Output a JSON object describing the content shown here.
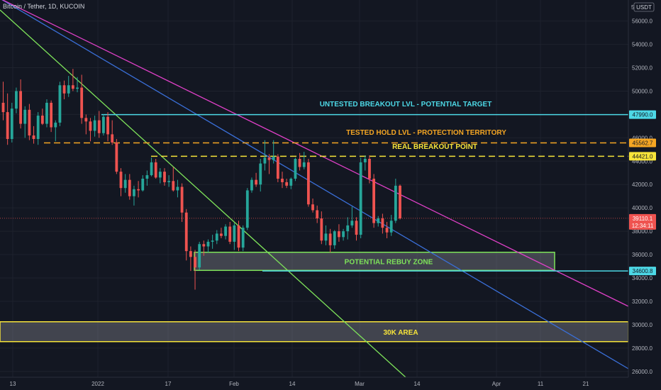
{
  "header": {
    "symbol_line": "Bitcoin / Tether, 1D, KUCOIN"
  },
  "chart_data": {
    "type": "candlestick",
    "title": "Bitcoin / Tether, 1D, KUCOIN",
    "quote_currency": "USDT",
    "scale_badge": "5",
    "ylim": [
      25500,
      57800
    ],
    "y_ticks": [
      26000,
      28000,
      30000,
      32000,
      34000,
      36000,
      38000,
      40000,
      42000,
      44000,
      46000,
      48000,
      50000,
      52000,
      54000,
      56000
    ],
    "x_ticks": [
      "13",
      "2022",
      "17",
      "Feb",
      "14",
      "Mar",
      "14",
      "Apr",
      "11",
      "21"
    ],
    "grid": true,
    "candles_ohlc": [
      [
        49000,
        50800,
        47500,
        48200
      ],
      [
        48200,
        49800,
        45400,
        45900
      ],
      [
        45900,
        49000,
        45600,
        48500
      ],
      [
        48500,
        50300,
        48100,
        50000
      ],
      [
        50000,
        51000,
        46800,
        47200
      ],
      [
        47200,
        48700,
        46000,
        48400
      ],
      [
        48400,
        48900,
        45800,
        46200
      ],
      [
        46200,
        47000,
        45500,
        45900
      ],
      [
        45900,
        48200,
        45400,
        47900
      ],
      [
        47900,
        48500,
        47100,
        47200
      ],
      [
        47200,
        49300,
        46900,
        49000
      ],
      [
        49000,
        49200,
        46500,
        46900
      ],
      [
        46900,
        47500,
        45700,
        47300
      ],
      [
        47300,
        50800,
        47000,
        50500
      ],
      [
        50500,
        50900,
        49300,
        49800
      ],
      [
        49800,
        51300,
        49500,
        50500
      ],
      [
        50500,
        51900,
        50000,
        50200
      ],
      [
        50200,
        51200,
        49900,
        50300
      ],
      [
        50300,
        51400,
        47200,
        47700
      ],
      [
        47700,
        48000,
        46300,
        47400
      ],
      [
        47400,
        47700,
        45700,
        46600
      ],
      [
        46600,
        47900,
        46100,
        47500
      ],
      [
        47500,
        48300,
        46000,
        46400
      ],
      [
        46400,
        48000,
        46200,
        47800
      ],
      [
        47800,
        48200,
        45700,
        46300
      ],
      [
        46300,
        47500,
        45400,
        45600
      ],
      [
        45600,
        45900,
        42900,
        43100
      ],
      [
        43100,
        43400,
        41000,
        41700
      ],
      [
        41700,
        42900,
        41300,
        42400
      ],
      [
        42400,
        42900,
        40700,
        41000
      ],
      [
        41000,
        41900,
        40200,
        41600
      ],
      [
        41600,
        42300,
        40900,
        41500
      ],
      [
        41500,
        42800,
        41400,
        42500
      ],
      [
        42500,
        43200,
        41900,
        42800
      ],
      [
        42800,
        44300,
        42700,
        43900
      ],
      [
        43900,
        44200,
        42500,
        42600
      ],
      [
        42600,
        43400,
        42100,
        43100
      ],
      [
        43100,
        43400,
        41900,
        42200
      ],
      [
        42200,
        42800,
        41800,
        42300
      ],
      [
        42300,
        43500,
        41400,
        41500
      ],
      [
        41500,
        42400,
        40900,
        41800
      ],
      [
        41800,
        42100,
        38800,
        39600
      ],
      [
        39600,
        39900,
        35500,
        36300
      ],
      [
        36300,
        36700,
        34600,
        35800
      ],
      [
        35800,
        36400,
        33000,
        34900
      ],
      [
        34900,
        37100,
        34700,
        36900
      ],
      [
        36900,
        37200,
        35900,
        36700
      ],
      [
        36700,
        37300,
        36200,
        37100
      ],
      [
        37100,
        37700,
        36500,
        37200
      ],
      [
        37200,
        38100,
        36900,
        37800
      ],
      [
        37800,
        38300,
        37400,
        37600
      ],
      [
        37600,
        38600,
        37300,
        38400
      ],
      [
        38400,
        38800,
        36900,
        37100
      ],
      [
        37100,
        38700,
        36400,
        38500
      ],
      [
        38500,
        38900,
        36300,
        36600
      ],
      [
        36600,
        38500,
        36300,
        38300
      ],
      [
        38300,
        41700,
        38100,
        41500
      ],
      [
        41500,
        42600,
        41300,
        42400
      ],
      [
        42400,
        43000,
        41800,
        42000
      ],
      [
        42000,
        44200,
        41400,
        43800
      ],
      [
        43800,
        45800,
        43200,
        44300
      ],
      [
        44300,
        44600,
        42900,
        44100
      ],
      [
        44100,
        45800,
        43800,
        44400
      ],
      [
        44400,
        44600,
        42200,
        42500
      ],
      [
        42500,
        43100,
        41700,
        42200
      ],
      [
        42200,
        42500,
        41700,
        41900
      ],
      [
        41900,
        42600,
        41600,
        42500
      ],
      [
        42500,
        44300,
        42300,
        44200
      ],
      [
        44200,
        44700,
        43200,
        43500
      ],
      [
        43500,
        44800,
        43300,
        43900
      ],
      [
        43900,
        44200,
        40100,
        40300
      ],
      [
        40300,
        40800,
        39600,
        39800
      ],
      [
        39800,
        40200,
        38700,
        39100
      ],
      [
        39100,
        39700,
        36900,
        37200
      ],
      [
        37200,
        38500,
        36800,
        37800
      ],
      [
        37800,
        38200,
        36200,
        36800
      ],
      [
        36800,
        38100,
        36500,
        38000
      ],
      [
        38000,
        38600,
        37100,
        37500
      ],
      [
        37500,
        38200,
        37200,
        38000
      ],
      [
        38000,
        39200,
        37300,
        38500
      ],
      [
        38500,
        40100,
        38300,
        38900
      ],
      [
        38900,
        39200,
        37200,
        37700
      ],
      [
        37700,
        44300,
        37400,
        43900
      ],
      [
        43900,
        44500,
        43200,
        44200
      ],
      [
        44200,
        44500,
        42100,
        42500
      ],
      [
        42500,
        42900,
        38300,
        38700
      ],
      [
        38700,
        39300,
        38400,
        39100
      ],
      [
        39100,
        39500,
        37800,
        38300
      ],
      [
        38300,
        38800,
        37400,
        37900
      ],
      [
        37900,
        39400,
        37600,
        38900
      ],
      [
        38900,
        42500,
        38700,
        41900
      ],
      [
        41900,
        42000,
        39000,
        39100
      ]
    ],
    "horizontal_levels": [
      {
        "value": 47990.0,
        "label": "47990.0",
        "style": "solid",
        "color": "#4dd8e6"
      },
      {
        "value": 45562.7,
        "label": "45562.7",
        "style": "dashed",
        "color": "#f5a623"
      },
      {
        "value": 44421.0,
        "label": "44421.0",
        "style": "dashed",
        "color": "#f7e43a"
      },
      {
        "value": 34600.8,
        "label": "34600.8",
        "style": "solid",
        "color": "#4dd8e6"
      }
    ],
    "zones": [
      {
        "label": "POTENTIAL REBUY ZONE",
        "y_top": 36200,
        "y_bottom": 34650,
        "color": "#7ee35a"
      },
      {
        "label": "30K AREA",
        "y_top": 30250,
        "y_bottom": 28550,
        "color": "#f7e43a"
      }
    ],
    "annotations": [
      {
        "text": "UNTESTED BREAKOUT LVL - POTENTIAL TARGET",
        "color": "#4dd8e6"
      },
      {
        "text": "TESTED HOLD LVL - PROTECTION TERRITORY",
        "color": "#f5a623"
      },
      {
        "text": "REAL BREAKOUT POINT",
        "color": "#f7e43a"
      }
    ],
    "last_price": {
      "value": 39110.1,
      "label": "39110.1",
      "countdown": "12:34:11",
      "color": "#ef5350"
    },
    "up_color": "#26a69a",
    "down_color": "#ef5350",
    "trendline_colors": [
      "#7ee35a",
      "#3a6fd8",
      "#e040c8"
    ]
  }
}
